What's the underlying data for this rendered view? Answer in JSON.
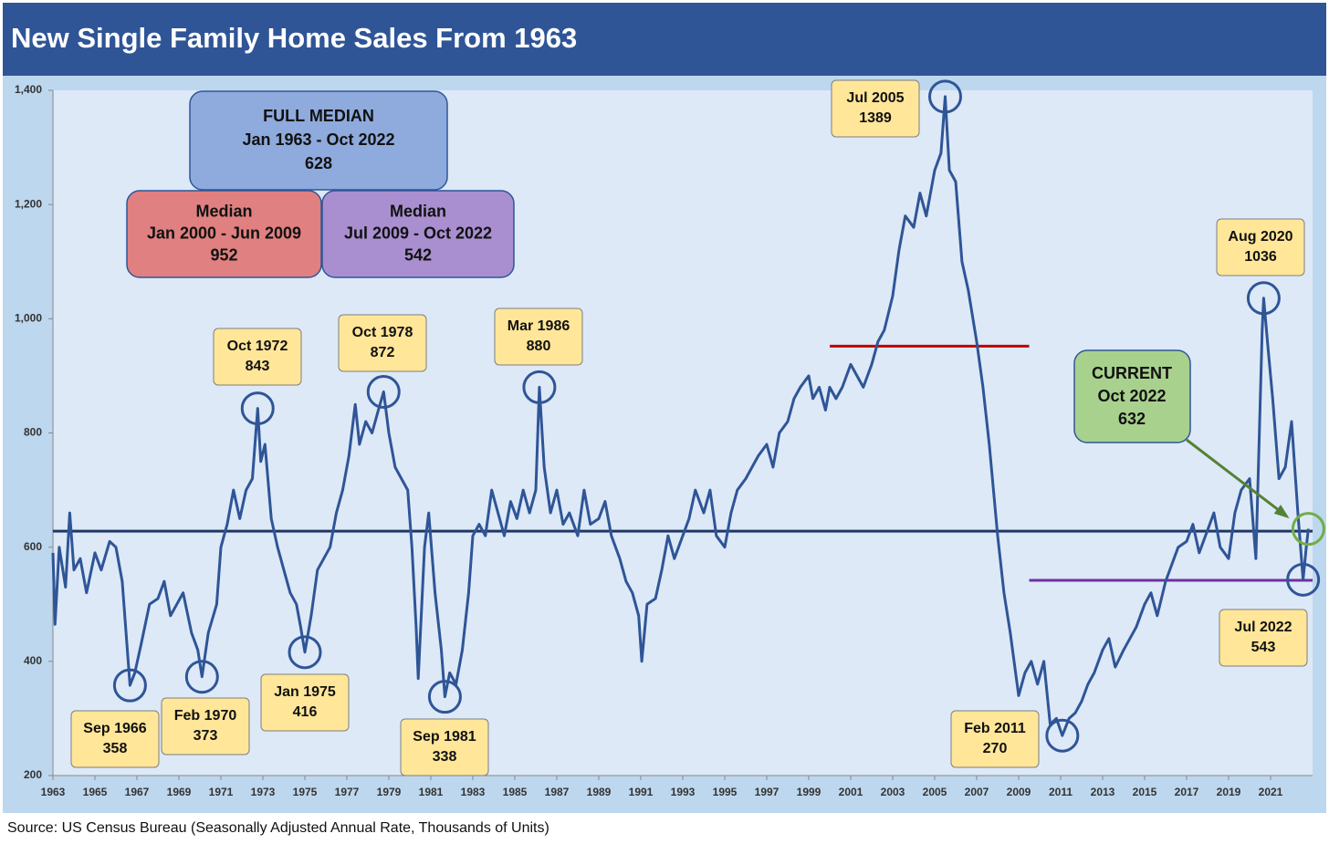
{
  "chart_data": {
    "type": "line",
    "title": "New Single Family Home Sales From 1963",
    "source": "Source: US Census Bureau (Seasonally Adjusted Annual Rate, Thousands of Units)",
    "xlim": [
      1963,
      2023
    ],
    "xticks": [
      1963,
      1965,
      1967,
      1969,
      1971,
      1973,
      1975,
      1977,
      1979,
      1981,
      1983,
      1985,
      1987,
      1989,
      1991,
      1993,
      1995,
      1997,
      1999,
      2001,
      2003,
      2005,
      2007,
      2009,
      2011,
      2013,
      2015,
      2017,
      2019,
      2021
    ],
    "ylim": [
      200,
      1400
    ],
    "yticks": [
      200,
      400,
      600,
      800,
      {
        "value": 1000,
        "label": "1,000"
      },
      {
        "value": 1200,
        "label": "1,200"
      },
      {
        "value": 1400,
        "label": "1,400"
      }
    ],
    "series": [
      {
        "color": "#2f5597",
        "x": [
          1963.0,
          1963.1,
          1963.3,
          1963.6,
          1963.8,
          1964.0,
          1964.3,
          1964.6,
          1965.0,
          1965.3,
          1965.7,
          1966.0,
          1966.3,
          1966.67,
          1966.9,
          1967.2,
          1967.6,
          1968.0,
          1968.3,
          1968.6,
          1968.9,
          1969.2,
          1969.6,
          1969.9,
          1970.1,
          1970.4,
          1970.8,
          1971.0,
          1971.3,
          1971.6,
          1971.9,
          1972.2,
          1972.5,
          1972.75,
          1972.9,
          1973.1,
          1973.4,
          1973.7,
          1974.0,
          1974.3,
          1974.6,
          1974.8,
          1975.0,
          1975.3,
          1975.6,
          1975.9,
          1976.2,
          1976.5,
          1976.8,
          1977.1,
          1977.4,
          1977.6,
          1977.9,
          1978.2,
          1978.5,
          1978.75,
          1979.0,
          1979.3,
          1979.6,
          1979.9,
          1980.1,
          1980.3,
          1980.4,
          1980.7,
          1980.9,
          1981.2,
          1981.5,
          1981.67,
          1981.9,
          1982.2,
          1982.5,
          1982.8,
          1983.0,
          1983.3,
          1983.6,
          1983.9,
          1984.2,
          1984.5,
          1984.8,
          1985.1,
          1985.4,
          1985.7,
          1986.0,
          1986.17,
          1986.4,
          1986.7,
          1987.0,
          1987.3,
          1987.6,
          1988.0,
          1988.3,
          1988.6,
          1989.0,
          1989.3,
          1989.6,
          1990.0,
          1990.3,
          1990.6,
          1990.9,
          1991.05,
          1991.3,
          1991.7,
          1992.0,
          1992.3,
          1992.6,
          1993.0,
          1993.3,
          1993.6,
          1994.0,
          1994.3,
          1994.6,
          1995.0,
          1995.3,
          1995.6,
          1996.0,
          1996.3,
          1996.6,
          1997.0,
          1997.3,
          1997.6,
          1998.0,
          1998.3,
          1998.6,
          1999.0,
          1999.2,
          1999.5,
          1999.8,
          2000.0,
          2000.3,
          2000.6,
          2001.0,
          2001.3,
          2001.6,
          2002.0,
          2002.3,
          2002.6,
          2003.0,
          2003.3,
          2003.6,
          2004.0,
          2004.3,
          2004.6,
          2005.0,
          2005.3,
          2005.5,
          2005.7,
          2006.0,
          2006.3,
          2006.6,
          2007.0,
          2007.3,
          2007.6,
          2008.0,
          2008.3,
          2008.6,
          2009.0,
          2009.3,
          2009.6,
          2009.9,
          2010.2,
          2010.5,
          2010.8,
          2011.08,
          2011.4,
          2011.7,
          2012.0,
          2012.3,
          2012.6,
          2013.0,
          2013.3,
          2013.6,
          2014.0,
          2014.3,
          2014.6,
          2015.0,
          2015.3,
          2015.6,
          2016.0,
          2016.3,
          2016.6,
          2017.0,
          2017.3,
          2017.6,
          2018.0,
          2018.3,
          2018.6,
          2019.0,
          2019.3,
          2019.6,
          2020.0,
          2020.3,
          2020.6,
          2020.67,
          2020.9,
          2021.1,
          2021.4,
          2021.7,
          2022.0,
          2022.3,
          2022.55,
          2022.7,
          2022.8
        ],
        "values": [
          590,
          465,
          600,
          530,
          660,
          560,
          580,
          520,
          590,
          560,
          610,
          600,
          540,
          358,
          380,
          430,
          500,
          510,
          540,
          480,
          500,
          520,
          450,
          420,
          373,
          450,
          500,
          600,
          640,
          700,
          650,
          700,
          720,
          843,
          750,
          780,
          650,
          600,
          560,
          520,
          500,
          460,
          416,
          480,
          560,
          580,
          600,
          660,
          700,
          760,
          850,
          780,
          820,
          800,
          840,
          872,
          800,
          740,
          720,
          700,
          600,
          460,
          370,
          600,
          660,
          520,
          420,
          338,
          380,
          360,
          420,
          520,
          620,
          640,
          620,
          700,
          660,
          620,
          680,
          650,
          700,
          660,
          700,
          880,
          740,
          660,
          700,
          640,
          660,
          620,
          700,
          640,
          650,
          680,
          620,
          580,
          540,
          520,
          480,
          400,
          500,
          510,
          560,
          620,
          580,
          620,
          650,
          700,
          660,
          700,
          620,
          600,
          660,
          700,
          720,
          740,
          760,
          780,
          740,
          800,
          820,
          860,
          880,
          900,
          860,
          880,
          840,
          880,
          860,
          880,
          920,
          900,
          880,
          920,
          960,
          980,
          1040,
          1120,
          1180,
          1160,
          1220,
          1180,
          1260,
          1290,
          1389,
          1260,
          1240,
          1100,
          1050,
          960,
          880,
          780,
          620,
          520,
          450,
          340,
          380,
          400,
          360,
          400,
          290,
          300,
          270,
          300,
          310,
          330,
          360,
          380,
          420,
          440,
          390,
          420,
          440,
          460,
          500,
          520,
          480,
          540,
          570,
          600,
          610,
          640,
          590,
          630,
          660,
          600,
          580,
          660,
          700,
          720,
          580,
          980,
          1036,
          940,
          860,
          720,
          740,
          820,
          660,
          543,
          600,
          632
        ]
      }
    ],
    "medians": [
      {
        "title": "FULL MEDIAN",
        "period": "Jan 1963 - Oct 2022",
        "value": 628,
        "color": "#1f3864",
        "span": [
          1963,
          2023
        ]
      },
      {
        "title": "Median",
        "period": "Jan 2000 - Jun 2009",
        "value": 952,
        "color": "#c00000",
        "span": [
          2000,
          2009.5
        ]
      },
      {
        "title": "Median",
        "period": "Jul 2009 - Oct 2022",
        "value": 542,
        "color": "#7030a0",
        "span": [
          2009.5,
          2023
        ]
      }
    ],
    "annotations": [
      {
        "label": "Sep 1966",
        "value": 358,
        "x": 1966.67
      },
      {
        "label": "Feb 1970",
        "value": 373,
        "x": 1970.1
      },
      {
        "label": "Oct 1972",
        "value": 843,
        "x": 1972.75
      },
      {
        "label": "Jan 1975",
        "value": 416,
        "x": 1975.0
      },
      {
        "label": "Oct 1978",
        "value": 872,
        "x": 1978.75
      },
      {
        "label": "Sep 1981",
        "value": 338,
        "x": 1981.67
      },
      {
        "label": "Mar 1986",
        "value": 880,
        "x": 1986.17
      },
      {
        "label": "Jul 2005",
        "value": 1389,
        "x": 2005.5
      },
      {
        "label": "Feb 2011",
        "value": 270,
        "x": 2011.08
      },
      {
        "label": "Aug 2020",
        "value": 1036,
        "x": 2020.67
      },
      {
        "label": "Jul 2022",
        "value": 543,
        "x": 2022.55
      }
    ],
    "current": {
      "title": "CURRENT",
      "label": "Oct 2022",
      "value": 632,
      "x": 2022.8
    }
  }
}
